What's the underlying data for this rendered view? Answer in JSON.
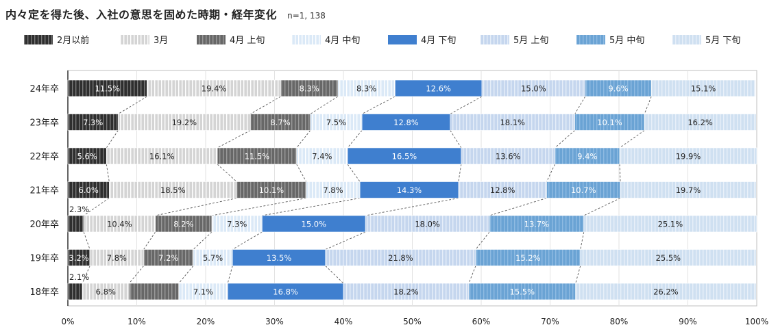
{
  "header": {
    "title": "内々定を得た後、入社の意思を固めた時期・経年変化",
    "n": "n=1, 138"
  },
  "chart_data": {
    "type": "bar",
    "orientation": "horizontal",
    "stacked": "percent",
    "categories": [
      "24年卒",
      "23年卒",
      "22年卒",
      "21年卒",
      "20年卒",
      "19年卒",
      "18年卒"
    ],
    "series": [
      {
        "name": "2月以前",
        "values": [
          11.5,
          7.3,
          5.6,
          6.0,
          2.3,
          3.2,
          2.1
        ],
        "color": "#2e2e2e",
        "hatch": "#7a7a7a",
        "text": "#ffffff"
      },
      {
        "name": "3月",
        "values": [
          19.4,
          19.2,
          16.1,
          18.5,
          10.4,
          7.8,
          6.8
        ],
        "color": "#d4d4d4",
        "hatch": "#ffffff",
        "text": "#222222"
      },
      {
        "name": "4月 上旬",
        "values": [
          8.3,
          8.7,
          11.5,
          10.1,
          8.2,
          7.2,
          7.2
        ],
        "color": "#676767",
        "hatch": "#9a9a9a",
        "text": "#ffffff"
      },
      {
        "name": "4月 中旬",
        "values": [
          8.3,
          7.5,
          7.4,
          7.8,
          7.3,
          5.7,
          7.1
        ],
        "color": "#dbe9f7",
        "hatch": "#ffffff",
        "text": "#222222"
      },
      {
        "name": "4月 下旬",
        "values": [
          12.6,
          12.8,
          16.5,
          14.3,
          15.0,
          13.5,
          16.8
        ],
        "color": "#3f7fcf",
        "hatch": "#3f7fcf",
        "text": "#ffffff"
      },
      {
        "name": "5月 上旬",
        "values": [
          15.0,
          18.1,
          13.6,
          12.8,
          18.0,
          21.8,
          18.2
        ],
        "color": "#c5d6ee",
        "hatch": "#e6eef9",
        "text": "#222222"
      },
      {
        "name": "5月 中旬",
        "values": [
          9.6,
          10.1,
          9.4,
          10.7,
          13.7,
          15.2,
          15.5
        ],
        "color": "#6aa3d4",
        "hatch": "#8fbbe2",
        "text": "#ffffff"
      },
      {
        "name": "5月 下旬",
        "values": [
          15.1,
          16.2,
          19.9,
          19.7,
          25.1,
          25.5,
          26.2
        ],
        "color": "#cfe0f1",
        "hatch": "#e8f0f9",
        "text": "#222222"
      }
    ],
    "data_labels": [
      [
        "11.5%",
        "19.4%",
        "8.3%",
        "8.3%",
        "12.6%",
        "15.0%",
        "9.6%",
        "15.1%"
      ],
      [
        "7.3%",
        "19.2%",
        "8.7%",
        "7.5%",
        "12.8%",
        "18.1%",
        "10.1%",
        "16.2%"
      ],
      [
        "5.6%",
        "16.1%",
        "11.5%",
        "7.4%",
        "16.5%",
        "13.6%",
        "9.4%",
        "19.9%"
      ],
      [
        "6.0%",
        "18.5%",
        "10.1%",
        "7.8%",
        "14.3%",
        "12.8%",
        "10.7%",
        "19.7%"
      ],
      [
        "2.3%",
        "10.4%",
        "8.2%",
        "7.3%",
        "15.0%",
        "18.0%",
        "13.7%",
        "25.1%"
      ],
      [
        "3.2%",
        "7.8%",
        "7.2%",
        "5.7%",
        "13.5%",
        "21.8%",
        "15.2%",
        "25.5%"
      ],
      [
        "2.1%",
        "6.8%",
        "",
        "7.1%",
        "16.8%",
        "18.2%",
        "15.5%",
        "26.2%"
      ]
    ],
    "outside_labels": [
      [
        4,
        0
      ],
      [
        6,
        0
      ]
    ],
    "x_ticks": [
      "0%",
      "10%",
      "20%",
      "30%",
      "40%",
      "50%",
      "60%",
      "70%",
      "80%",
      "90%",
      "100%"
    ],
    "xlim": [
      0,
      100
    ],
    "grid": true,
    "connector_lines": true,
    "legend": "top"
  }
}
